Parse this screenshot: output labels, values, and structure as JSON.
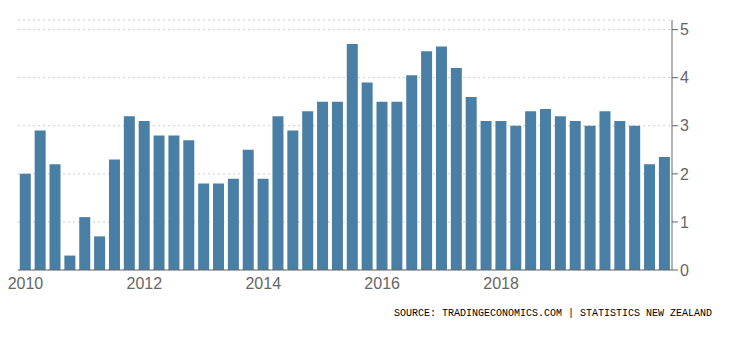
{
  "chart_data": {
    "type": "bar",
    "categories": [
      "2010",
      null,
      null,
      null,
      null,
      null,
      null,
      null,
      "2012",
      null,
      null,
      null,
      null,
      null,
      null,
      null,
      "2014",
      null,
      null,
      null,
      null,
      null,
      null,
      null,
      "2016",
      null,
      null,
      null,
      null,
      null,
      null,
      null,
      "2018",
      null,
      null,
      null,
      null,
      null,
      null,
      null,
      null,
      null,
      null,
      null
    ],
    "values": [
      2.0,
      2.9,
      2.2,
      0.3,
      1.1,
      0.7,
      2.3,
      3.2,
      3.1,
      2.8,
      2.8,
      2.7,
      1.8,
      1.8,
      1.9,
      2.5,
      1.9,
      3.2,
      2.9,
      3.3,
      3.5,
      3.5,
      4.7,
      3.9,
      3.5,
      3.5,
      4.05,
      4.55,
      4.65,
      4.2,
      3.6,
      3.1,
      3.1,
      3.0,
      3.3,
      3.35,
      3.2,
      3.1,
      3.0,
      3.3,
      3.1,
      3.0,
      2.2,
      2.35
    ],
    "color": "#4a7fa5",
    "ylim": [
      0,
      5.2
    ],
    "yticks": [
      0,
      1,
      2,
      3,
      4,
      5
    ],
    "grid": true,
    "annotation": "SOURCE: TRADINGECONOMICS.COM | STATISTICS NEW ZEALAND"
  }
}
